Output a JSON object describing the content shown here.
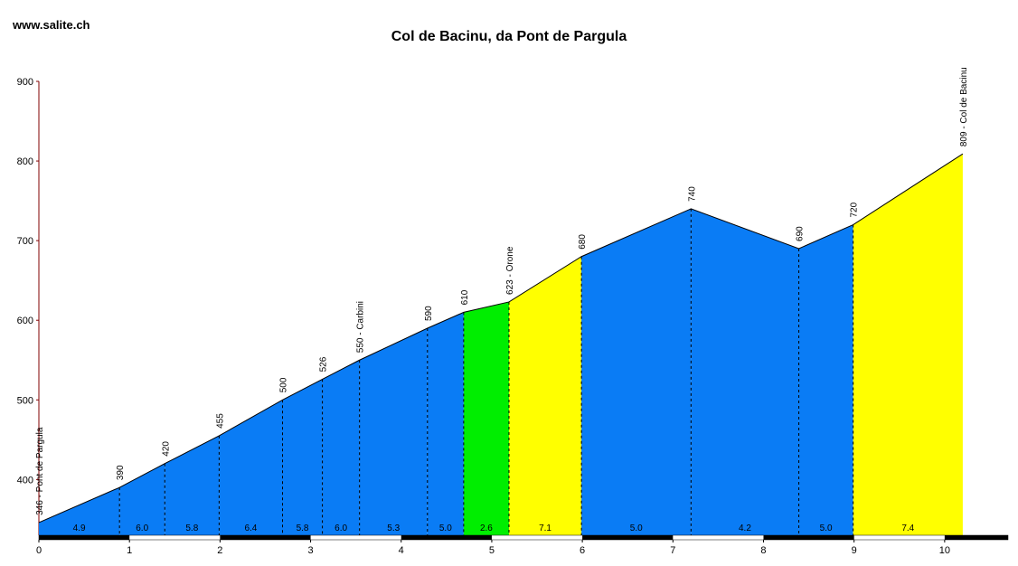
{
  "chart_data": {
    "type": "profile",
    "title": "Col de Bacinu, da Pont de Pargula",
    "source": "www.salite.ch",
    "x": [
      0,
      0.89,
      1.39,
      1.99,
      2.69,
      3.13,
      3.54,
      4.29,
      4.69,
      5.19,
      5.99,
      7.2,
      8.39,
      8.99,
      10.2
    ],
    "values": [
      346,
      390,
      420,
      455,
      500,
      526,
      550,
      590,
      610,
      623,
      680,
      740,
      690,
      720,
      809
    ],
    "value_labels": [
      "346 - Pont de Pargula",
      "390",
      "420",
      "455",
      "500",
      "526",
      "550 - Carbini",
      "590",
      "610",
      "623 - Orone",
      "680",
      "740",
      "690",
      "720",
      "809 - Col de Bacinu"
    ],
    "segment_labels": [
      "4.9",
      "6.0",
      "5.8",
      "6.4",
      "5.8",
      "6.0",
      "5.3",
      "5.0",
      "2.6",
      "7.1",
      "5.0",
      "4.2",
      "5.0",
      "7.4"
    ],
    "segment_colors": [
      "#0a7cf5",
      "#0a7cf5",
      "#0a7cf5",
      "#0a7cf5",
      "#0a7cf5",
      "#0a7cf5",
      "#0a7cf5",
      "#0a7cf5",
      "#00ee00",
      "#ffff00",
      "#0a7cf5",
      "#0a7cf5",
      "#0a7cf5",
      "#ffff00"
    ],
    "xlim": [
      0,
      10.7
    ],
    "ylim": [
      330,
      900
    ],
    "xticks": [
      0,
      1,
      2,
      3,
      4,
      5,
      6,
      7,
      8,
      9,
      10
    ],
    "yticks": [
      400,
      500,
      600,
      700,
      800,
      900
    ]
  }
}
